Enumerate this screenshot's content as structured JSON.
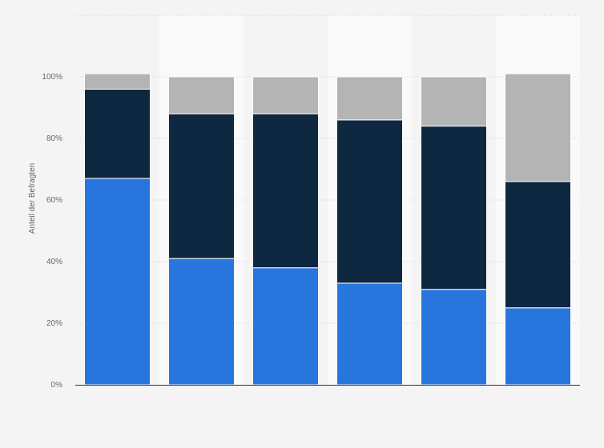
{
  "chart_data": {
    "type": "bar",
    "stacked": true,
    "ylabel": "Anteil der Befragten",
    "ylim": [
      0,
      120
    ],
    "yticks": [
      0,
      20,
      40,
      60,
      80,
      100
    ],
    "ytick_labels": [
      "0%",
      "20%",
      "40%",
      "60%",
      "80%",
      "100%"
    ],
    "categories": [
      "",
      "",
      "",
      "",
      "",
      ""
    ],
    "grid": true,
    "legend": "none",
    "series": [
      {
        "color": "#2876dd",
        "values": [
          67,
          41,
          38,
          33,
          31,
          25
        ]
      },
      {
        "color": "#0f2841",
        "values": [
          29,
          47,
          50,
          53,
          53,
          41
        ]
      },
      {
        "color": "#b4b4b4",
        "values": [
          5,
          12,
          12,
          14,
          16,
          35
        ]
      }
    ]
  }
}
